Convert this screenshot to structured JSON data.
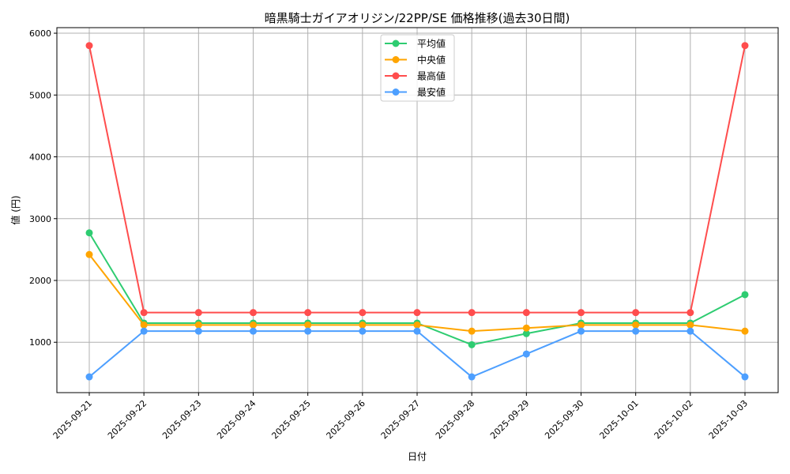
{
  "chart_data": {
    "type": "line",
    "title": "暗黒騎士ガイアオリジン/22PP/SE 価格推移(過去30日間)",
    "xlabel": "日付",
    "ylabel": "値 (円)",
    "categories": [
      "2025-09-21",
      "2025-09-22",
      "2025-09-23",
      "2025-09-24",
      "2025-09-25",
      "2025-09-26",
      "2025-09-27",
      "2025-09-28",
      "2025-09-29",
      "2025-09-30",
      "2025-10-01",
      "2025-10-02",
      "2025-10-03"
    ],
    "yticks": [
      1000,
      2000,
      3000,
      4000,
      5000,
      6000
    ],
    "ylim": [
      185,
      6090
    ],
    "grid": true,
    "legend_position": "top-center",
    "series": [
      {
        "name": "平均値",
        "color": "#2ecc71",
        "values": [
          2770,
          1310,
          1310,
          1310,
          1310,
          1310,
          1310,
          960,
          1140,
          1310,
          1310,
          1310,
          1770
        ]
      },
      {
        "name": "中央値",
        "color": "#ffa500",
        "values": [
          2420,
          1280,
          1280,
          1280,
          1280,
          1280,
          1280,
          1180,
          1230,
          1280,
          1280,
          1280,
          1180
        ]
      },
      {
        "name": "最高値",
        "color": "#ff4d4d",
        "values": [
          5800,
          1480,
          1480,
          1480,
          1480,
          1480,
          1480,
          1480,
          1480,
          1480,
          1480,
          1480,
          5800
        ]
      },
      {
        "name": "最安値",
        "color": "#4d9fff",
        "values": [
          440,
          1180,
          1180,
          1180,
          1180,
          1180,
          1180,
          440,
          810,
          1180,
          1180,
          1180,
          440
        ]
      }
    ]
  }
}
